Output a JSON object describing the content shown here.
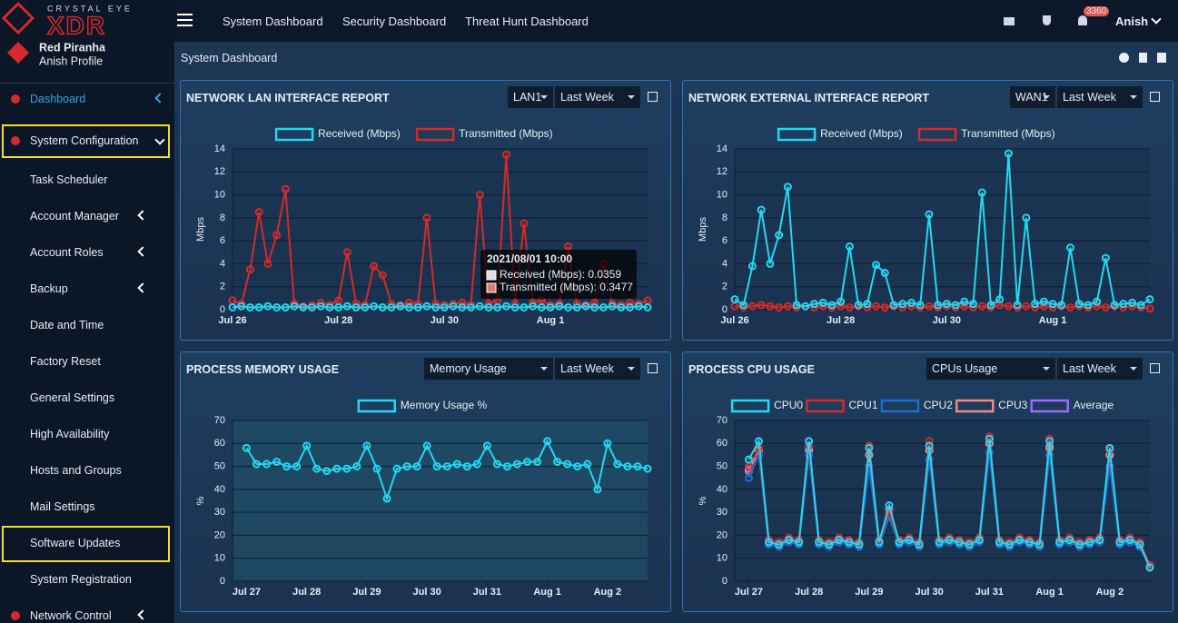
{
  "brand": {
    "tagline": "CRYSTAL EYE",
    "logo": "XDR",
    "org": "Red Piranha",
    "profile": "Anish Profile"
  },
  "topbar": {
    "nav": [
      "System Dashboard",
      "Security Dashboard",
      "Threat Hunt Dashboard"
    ],
    "badge": "3360",
    "user": "Anish"
  },
  "sidebar": {
    "items": [
      "Dashboard",
      "System Configuration",
      "Task Scheduler",
      "Account Manager",
      "Account Roles",
      "Backup",
      "Date and Time",
      "Factory Reset",
      "General Settings",
      "High Availability",
      "Hosts and Groups",
      "Mail Settings",
      "Software Updates",
      "System Registration",
      "Network Control"
    ]
  },
  "page_header": {
    "title": "System Dashboard"
  },
  "panels": [
    {
      "title": "NETWORK LAN INTERFACE REPORT",
      "controls": [
        "LAN1",
        "Last Week"
      ],
      "tooltip": {
        "title": "2021/08/01 10:00",
        "lines": [
          "Received (Mbps): 0.0359",
          "Transmitted (Mbps): 0.3477"
        ]
      },
      "chart": {
        "type": "line",
        "ylabel": "Mbps",
        "ylim": [
          0,
          14
        ],
        "yticks": [
          0,
          2,
          4,
          6,
          8,
          10,
          12,
          14
        ],
        "xlim": [
          0,
          47
        ],
        "xticks": [
          {
            "value": 0,
            "label": "Jul 26"
          },
          {
            "value": 12,
            "label": "Jul 28"
          },
          {
            "value": 24,
            "label": "Jul 30"
          },
          {
            "value": 36,
            "label": "Aug 1"
          }
        ],
        "series": [
          {
            "name": "Received (Mbps)",
            "color": "#22d8f2",
            "values": [
              0.2,
              0.3,
              0.2,
              0.2,
              0.3,
              0.2,
              0.2,
              0.3,
              0.2,
              0.2,
              0.3,
              0.2,
              0.2,
              0.3,
              0.2,
              0.2,
              0.3,
              0.2,
              0.2,
              0.3,
              0.2,
              0.2,
              0.3,
              0.2,
              0.2,
              0.3,
              0.2,
              0.2,
              0.3,
              0.2,
              0.2,
              0.3,
              0.2,
              0.2,
              0.3,
              0.2,
              0.2,
              0.3,
              0.2,
              0.2,
              0.3,
              0.2,
              0.2,
              0.3,
              0.2,
              0.2,
              0.3,
              0.2
            ]
          },
          {
            "name": "Transmitted (Mbps)",
            "color": "#d42a2a",
            "values": [
              0.8,
              0.5,
              3.5,
              8.5,
              4,
              6.5,
              10.5,
              0.5,
              0.3,
              0.4,
              0.6,
              0.4,
              0.8,
              5,
              0.5,
              0.4,
              3.8,
              3,
              0.5,
              0.4,
              0.6,
              0.5,
              8,
              0.5,
              0.4,
              0.5,
              0.6,
              0.4,
              10,
              0.5,
              0.8,
              13.5,
              0.5,
              7.5,
              0.6,
              0.8,
              0.4,
              0.5,
              5.5,
              0.5,
              0.4,
              0.6,
              4,
              0.5,
              0.4,
              0.6,
              0.5,
              0.8
            ]
          }
        ]
      }
    },
    {
      "title": "NETWORK EXTERNAL INTERFACE REPORT",
      "controls": [
        "WAN1",
        "Last Week"
      ],
      "chart": {
        "type": "line",
        "ylabel": "Mbps",
        "ylim": [
          0,
          14
        ],
        "yticks": [
          0,
          2,
          4,
          6,
          8,
          10,
          12,
          14
        ],
        "xlim": [
          0,
          47
        ],
        "xticks": [
          {
            "value": 0,
            "label": "Jul 26"
          },
          {
            "value": 12,
            "label": "Jul 28"
          },
          {
            "value": 24,
            "label": "Jul 30"
          },
          {
            "value": 36,
            "label": "Aug 1"
          }
        ],
        "series": [
          {
            "name": "Received (Mbps)",
            "color": "#22d8f2",
            "values": [
              0.9,
              0.4,
              3.8,
              8.7,
              4,
              6.5,
              10.7,
              0.4,
              0.3,
              0.5,
              0.6,
              0.4,
              0.7,
              5.5,
              0.4,
              0.5,
              3.9,
              3.2,
              0.4,
              0.5,
              0.6,
              0.4,
              8.3,
              0.4,
              0.5,
              0.4,
              0.7,
              0.5,
              10.2,
              0.4,
              0.9,
              13.6,
              0.4,
              8,
              0.5,
              0.7,
              0.5,
              0.4,
              5.4,
              0.5,
              0.4,
              0.7,
              4.5,
              0.4,
              0.5,
              0.6,
              0.4,
              0.9
            ]
          },
          {
            "name": "Transmitted (Mbps)",
            "color": "#d42a2a",
            "values": [
              0.3,
              0.2,
              0.3,
              0.4,
              0.3,
              0.2,
              0.3,
              0.2,
              0.3,
              0.2,
              0.3,
              0.2,
              0.3,
              0.2,
              0.3,
              0.2,
              0.3,
              0.2,
              0.3,
              0.2,
              0.3,
              0.2,
              0.3,
              0.2,
              0.3,
              0.2,
              0.3,
              0.2,
              0.3,
              0.2,
              0.4,
              0.3,
              0.2,
              0.3,
              0.2,
              0.3,
              0.2,
              0.3,
              0.2,
              0.3,
              0.2,
              0.3,
              0.2,
              0.3,
              0.2,
              0.3,
              0.2,
              0.1
            ]
          }
        ]
      }
    },
    {
      "title": "PROCESS MEMORY USAGE",
      "controls": [
        "Memory Usage",
        "Last Week"
      ],
      "chart": {
        "type": "line",
        "ylabel": "%",
        "ylim": [
          0,
          70
        ],
        "yticks": [
          0,
          10,
          20,
          30,
          40,
          50,
          60,
          70
        ],
        "xlim": [
          -1.4,
          40
        ],
        "xticks": [
          {
            "value": 0,
            "label": "Jul 27"
          },
          {
            "value": 6,
            "label": "Jul 28"
          },
          {
            "value": 12,
            "label": "Jul 29"
          },
          {
            "value": 18,
            "label": "Jul 30"
          },
          {
            "value": 24,
            "label": "Jul 31"
          },
          {
            "value": 30,
            "label": "Aug 1"
          },
          {
            "value": 36,
            "label": "Aug 2"
          }
        ],
        "series": [
          {
            "name": "Memory Usage %",
            "color": "#22d8f2",
            "values": [
              58,
              51,
              51,
              52,
              50,
              50,
              59,
              49,
              48,
              49,
              49,
              50,
              59,
              49,
              36,
              49,
              50,
              50,
              59,
              50,
              50,
              51,
              50,
              51,
              59,
              51,
              50,
              51,
              52,
              52,
              61,
              52,
              51,
              50,
              51,
              40,
              60,
              51,
              50,
              50,
              49
            ]
          }
        ]
      }
    },
    {
      "title": "PROCESS CPU USAGE",
      "controls": [
        "CPUs Usage",
        "Last Week"
      ],
      "chart": {
        "type": "line",
        "ylabel": "%",
        "ylim": [
          0,
          70
        ],
        "yticks": [
          0,
          10,
          20,
          30,
          40,
          50,
          60,
          70
        ],
        "xlim": [
          -1.4,
          40
        ],
        "xticks": [
          {
            "value": 0,
            "label": "Jul 27"
          },
          {
            "value": 6,
            "label": "Jul 28"
          },
          {
            "value": 12,
            "label": "Jul 29"
          },
          {
            "value": 18,
            "label": "Jul 30"
          },
          {
            "value": 24,
            "label": "Jul 31"
          },
          {
            "value": 30,
            "label": "Aug 1"
          },
          {
            "value": 36,
            "label": "Aug 2"
          }
        ],
        "series": [
          {
            "name": "CPU0",
            "color": "#22d8f2",
            "values": [
              53,
              61,
              17,
              16,
              18,
              17,
              61,
              17,
              16,
              18,
              17,
              16,
              58,
              17,
              33,
              17,
              18,
              16,
              59,
              17,
              18,
              17,
              16,
              18,
              62,
              17,
              16,
              18,
              17,
              16,
              61,
              17,
              18,
              16,
              17,
              18,
              58,
              17,
              18,
              16,
              6
            ]
          },
          {
            "name": "CPU1",
            "color": "#d42a2a",
            "values": [
              50,
              58,
              18,
              17,
              19,
              18,
              59,
              18,
              17,
              19,
              18,
              17,
              59,
              18,
              30,
              18,
              19,
              17,
              61,
              18,
              19,
              18,
              17,
              19,
              63,
              18,
              17,
              19,
              18,
              17,
              62,
              18,
              19,
              17,
              18,
              19,
              57,
              18,
              19,
              17,
              7
            ]
          },
          {
            "name": "CPU2",
            "color": "#1e6fd0",
            "values": [
              45,
              55,
              16,
              15,
              17,
              16,
              55,
              16,
              15,
              17,
              16,
              15,
              50,
              16,
              28,
              16,
              17,
              15,
              53,
              16,
              17,
              16,
              15,
              17,
              56,
              16,
              15,
              17,
              16,
              15,
              55,
              16,
              17,
              15,
              16,
              17,
              50,
              16,
              17,
              15,
              6
            ]
          },
          {
            "name": "CPU3",
            "color": "#f08a8a",
            "values": [
              48,
              57,
              17,
              16,
              18,
              17,
              57,
              17,
              16,
              18,
              17,
              16,
              55,
              17,
              31,
              17,
              18,
              16,
              57,
              17,
              18,
              17,
              16,
              18,
              60,
              17,
              16,
              18,
              17,
              16,
              58,
              17,
              18,
              16,
              17,
              18,
              55,
              17,
              18,
              16,
              7
            ]
          },
          {
            "name": "Average",
            "color": "#9b6bff",
            "values": [
              49,
              58,
              17,
              16,
              18,
              17,
              58,
              17,
              16,
              18,
              17,
              16,
              55,
              17,
              30,
              17,
              18,
              16,
              57,
              17,
              18,
              17,
              16,
              18,
              60,
              17,
              16,
              18,
              17,
              16,
              59,
              17,
              18,
              16,
              17,
              18,
              55,
              17,
              18,
              16,
              6
            ]
          }
        ]
      }
    }
  ]
}
